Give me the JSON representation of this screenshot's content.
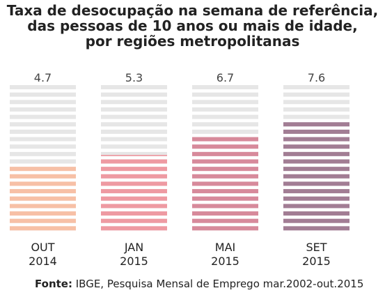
{
  "title": {
    "line1": "Taxa de desocupação na semana de referência,",
    "line2": "das pessoas de 10 anos ou mais de idade,",
    "line3": "por regiões metropolitanas"
  },
  "source": {
    "label": "Fonte:",
    "text": "IBGE, Pesquisa Mensal de Emprego mar.2002-out.2015"
  },
  "chart_data": {
    "type": "bar",
    "title": "Taxa de desocupação na semana de referência, das pessoas de 10 anos ou mais de idade, por regiões metropolitanas",
    "categories": [
      {
        "month": "OUT",
        "year": "2014"
      },
      {
        "month": "JAN",
        "year": "2015"
      },
      {
        "month": "MAI",
        "year": "2015"
      },
      {
        "month": "SET",
        "year": "2015"
      }
    ],
    "values": [
      4.7,
      5.3,
      6.7,
      7.6
    ],
    "value_labels": [
      "4.7",
      "5.3",
      "6.7",
      "7.6"
    ],
    "ylim": [
      0,
      10
    ],
    "colors": [
      "#f7c0a6",
      "#ee9aa2",
      "#d78a9b",
      "#a27d94"
    ],
    "background_color": "#e6e6e6",
    "grid": false
  }
}
